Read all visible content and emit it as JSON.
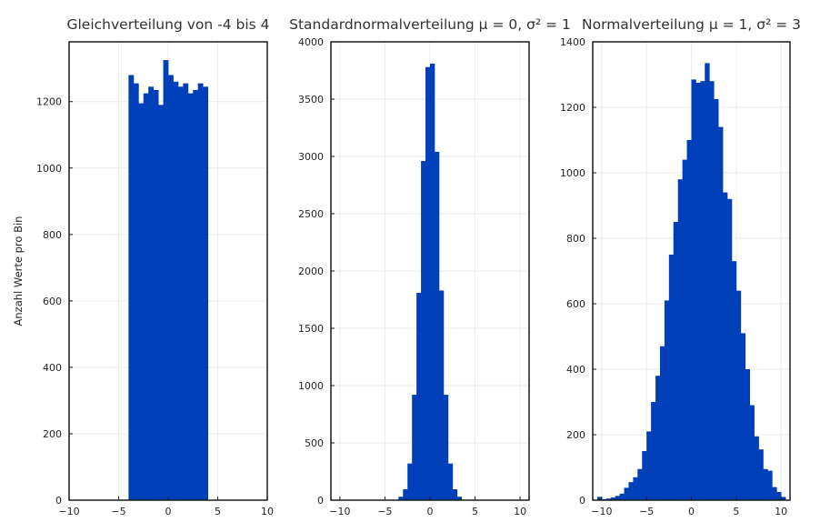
{
  "colors": {
    "bar": "#003fba",
    "grid": "#ebebeb",
    "frame": "#1a1a1a",
    "text": "#262626"
  },
  "ylabel": "Anzahl Werte pro Bin",
  "chart_data": [
    {
      "type": "histogram",
      "title": "Gleichverteilung von -4 bis 4",
      "xlim": [
        -10,
        10
      ],
      "ylim": [
        0,
        1380
      ],
      "xticks": [
        -10,
        -5,
        0,
        5,
        10
      ],
      "yticks": [
        0,
        200,
        400,
        600,
        800,
        1000,
        1200
      ],
      "grid": true,
      "bins": [
        {
          "x0": -4.0,
          "x1": -3.5,
          "count": 1280
        },
        {
          "x0": -3.5,
          "x1": -3.0,
          "count": 1255
        },
        {
          "x0": -3.0,
          "x1": -2.5,
          "count": 1195
        },
        {
          "x0": -2.5,
          "x1": -2.0,
          "count": 1225
        },
        {
          "x0": -2.0,
          "x1": -1.5,
          "count": 1245
        },
        {
          "x0": -1.5,
          "x1": -1.0,
          "count": 1235
        },
        {
          "x0": -1.0,
          "x1": -0.5,
          "count": 1190
        },
        {
          "x0": -0.5,
          "x1": 0.0,
          "count": 1325
        },
        {
          "x0": 0.0,
          "x1": 0.5,
          "count": 1280
        },
        {
          "x0": 0.5,
          "x1": 1.0,
          "count": 1260
        },
        {
          "x0": 1.0,
          "x1": 1.5,
          "count": 1245
        },
        {
          "x0": 1.5,
          "x1": 2.0,
          "count": 1255
        },
        {
          "x0": 2.0,
          "x1": 2.5,
          "count": 1225
        },
        {
          "x0": 2.5,
          "x1": 3.0,
          "count": 1235
        },
        {
          "x0": 3.0,
          "x1": 3.5,
          "count": 1255
        },
        {
          "x0": 3.5,
          "x1": 4.0,
          "count": 1245
        }
      ]
    },
    {
      "type": "histogram",
      "title": "Standardnormalverteilung μ = 0, σ² = 1",
      "xlim": [
        -11,
        11
      ],
      "ylim": [
        0,
        4000
      ],
      "xticks": [
        -10,
        -5,
        0,
        5,
        10
      ],
      "yticks": [
        0,
        500,
        1000,
        1500,
        2000,
        2500,
        3000,
        3500,
        4000
      ],
      "grid": true,
      "bins": [
        {
          "x0": -3.5,
          "x1": -3.0,
          "count": 30
        },
        {
          "x0": -3.0,
          "x1": -2.5,
          "count": 95
        },
        {
          "x0": -2.5,
          "x1": -2.0,
          "count": 320
        },
        {
          "x0": -2.0,
          "x1": -1.5,
          "count": 920
        },
        {
          "x0": -1.5,
          "x1": -1.0,
          "count": 1810
        },
        {
          "x0": -1.0,
          "x1": -0.5,
          "count": 2960
        },
        {
          "x0": -0.5,
          "x1": 0.0,
          "count": 3780
        },
        {
          "x0": 0.0,
          "x1": 0.5,
          "count": 3810
        },
        {
          "x0": 0.5,
          "x1": 1.0,
          "count": 3040
        },
        {
          "x0": 1.0,
          "x1": 1.5,
          "count": 1830
        },
        {
          "x0": 1.5,
          "x1": 2.0,
          "count": 920
        },
        {
          "x0": 2.0,
          "x1": 2.5,
          "count": 320
        },
        {
          "x0": 2.5,
          "x1": 3.0,
          "count": 95
        },
        {
          "x0": 3.0,
          "x1": 3.5,
          "count": 30
        }
      ]
    },
    {
      "type": "histogram",
      "title": "Normalverteilung μ = 1, σ² = 3",
      "xlim": [
        -11,
        11
      ],
      "ylim": [
        0,
        1400
      ],
      "xticks": [
        -10,
        -5,
        0,
        5,
        10
      ],
      "yticks": [
        0,
        200,
        400,
        600,
        800,
        1000,
        1200,
        1400
      ],
      "grid": true,
      "bins": [
        {
          "x0": -10.5,
          "x1": -10.0,
          "count": 10
        },
        {
          "x0": -10.0,
          "x1": -9.5,
          "count": 3
        },
        {
          "x0": -9.5,
          "x1": -9.0,
          "count": 5
        },
        {
          "x0": -9.0,
          "x1": -8.5,
          "count": 8
        },
        {
          "x0": -8.5,
          "x1": -8.0,
          "count": 13
        },
        {
          "x0": -8.0,
          "x1": -7.5,
          "count": 20
        },
        {
          "x0": -7.5,
          "x1": -7.0,
          "count": 38
        },
        {
          "x0": -7.0,
          "x1": -6.5,
          "count": 55
        },
        {
          "x0": -6.5,
          "x1": -6.0,
          "count": 70
        },
        {
          "x0": -6.0,
          "x1": -5.5,
          "count": 95
        },
        {
          "x0": -5.5,
          "x1": -5.0,
          "count": 150
        },
        {
          "x0": -5.0,
          "x1": -4.5,
          "count": 210
        },
        {
          "x0": -4.5,
          "x1": -4.0,
          "count": 300
        },
        {
          "x0": -4.0,
          "x1": -3.5,
          "count": 380
        },
        {
          "x0": -3.5,
          "x1": -3.0,
          "count": 470
        },
        {
          "x0": -3.0,
          "x1": -2.5,
          "count": 610
        },
        {
          "x0": -2.5,
          "x1": -2.0,
          "count": 750
        },
        {
          "x0": -2.0,
          "x1": -1.5,
          "count": 850
        },
        {
          "x0": -1.5,
          "x1": -1.0,
          "count": 980
        },
        {
          "x0": -1.0,
          "x1": -0.5,
          "count": 1040
        },
        {
          "x0": -0.5,
          "x1": 0.0,
          "count": 1100
        },
        {
          "x0": 0.0,
          "x1": 0.5,
          "count": 1285
        },
        {
          "x0": 0.5,
          "x1": 1.0,
          "count": 1275
        },
        {
          "x0": 1.0,
          "x1": 1.5,
          "count": 1280
        },
        {
          "x0": 1.5,
          "x1": 2.0,
          "count": 1335
        },
        {
          "x0": 2.0,
          "x1": 2.5,
          "count": 1280
        },
        {
          "x0": 2.5,
          "x1": 3.0,
          "count": 1225
        },
        {
          "x0": 3.0,
          "x1": 3.5,
          "count": 1140
        },
        {
          "x0": 3.5,
          "x1": 4.0,
          "count": 940
        },
        {
          "x0": 4.0,
          "x1": 4.5,
          "count": 920
        },
        {
          "x0": 4.5,
          "x1": 5.0,
          "count": 730
        },
        {
          "x0": 5.0,
          "x1": 5.5,
          "count": 640
        },
        {
          "x0": 5.5,
          "x1": 6.0,
          "count": 510
        },
        {
          "x0": 6.0,
          "x1": 6.5,
          "count": 400
        },
        {
          "x0": 6.5,
          "x1": 7.0,
          "count": 290
        },
        {
          "x0": 7.0,
          "x1": 7.5,
          "count": 195
        },
        {
          "x0": 7.5,
          "x1": 8.0,
          "count": 155
        },
        {
          "x0": 8.0,
          "x1": 8.5,
          "count": 95
        },
        {
          "x0": 8.5,
          "x1": 9.0,
          "count": 90
        },
        {
          "x0": 9.0,
          "x1": 9.5,
          "count": 40
        },
        {
          "x0": 9.5,
          "x1": 10.0,
          "count": 25
        },
        {
          "x0": 10.0,
          "x1": 10.5,
          "count": 10
        }
      ]
    }
  ]
}
